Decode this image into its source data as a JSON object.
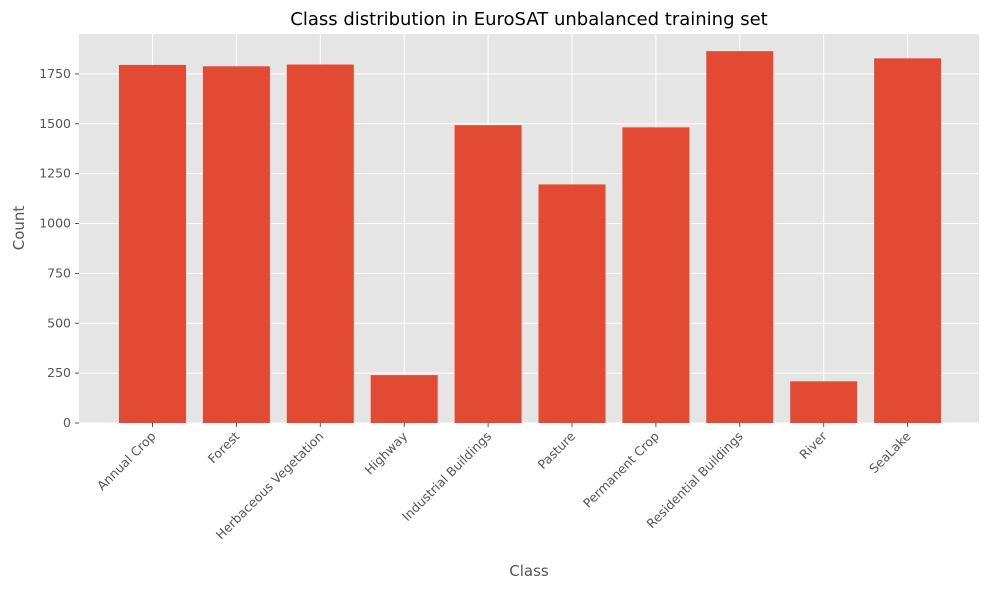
{
  "chart_data": {
    "type": "bar",
    "title": "Class distribution in EuroSAT unbalanced training set",
    "xlabel": "Class",
    "ylabel": "Count",
    "categories": [
      "Annual Crop",
      "Forest",
      "Herbaceous Vegetation",
      "Highway",
      "Industrial Buildings",
      "Pasture",
      "Permanent Crop",
      "Residential Buildings",
      "River",
      "SeaLake"
    ],
    "values": [
      1795,
      1788,
      1797,
      240,
      1493,
      1196,
      1482,
      1864,
      209,
      1828
    ],
    "ylim": [
      0,
      1950
    ],
    "yticks": [
      0,
      250,
      500,
      750,
      1000,
      1250,
      1500,
      1750
    ],
    "grid": true,
    "colors": {
      "bar": "#e24a33",
      "plot_bg": "#e5e5e5",
      "grid": "#ffffff",
      "text": "#555555",
      "title": "#000000"
    }
  }
}
